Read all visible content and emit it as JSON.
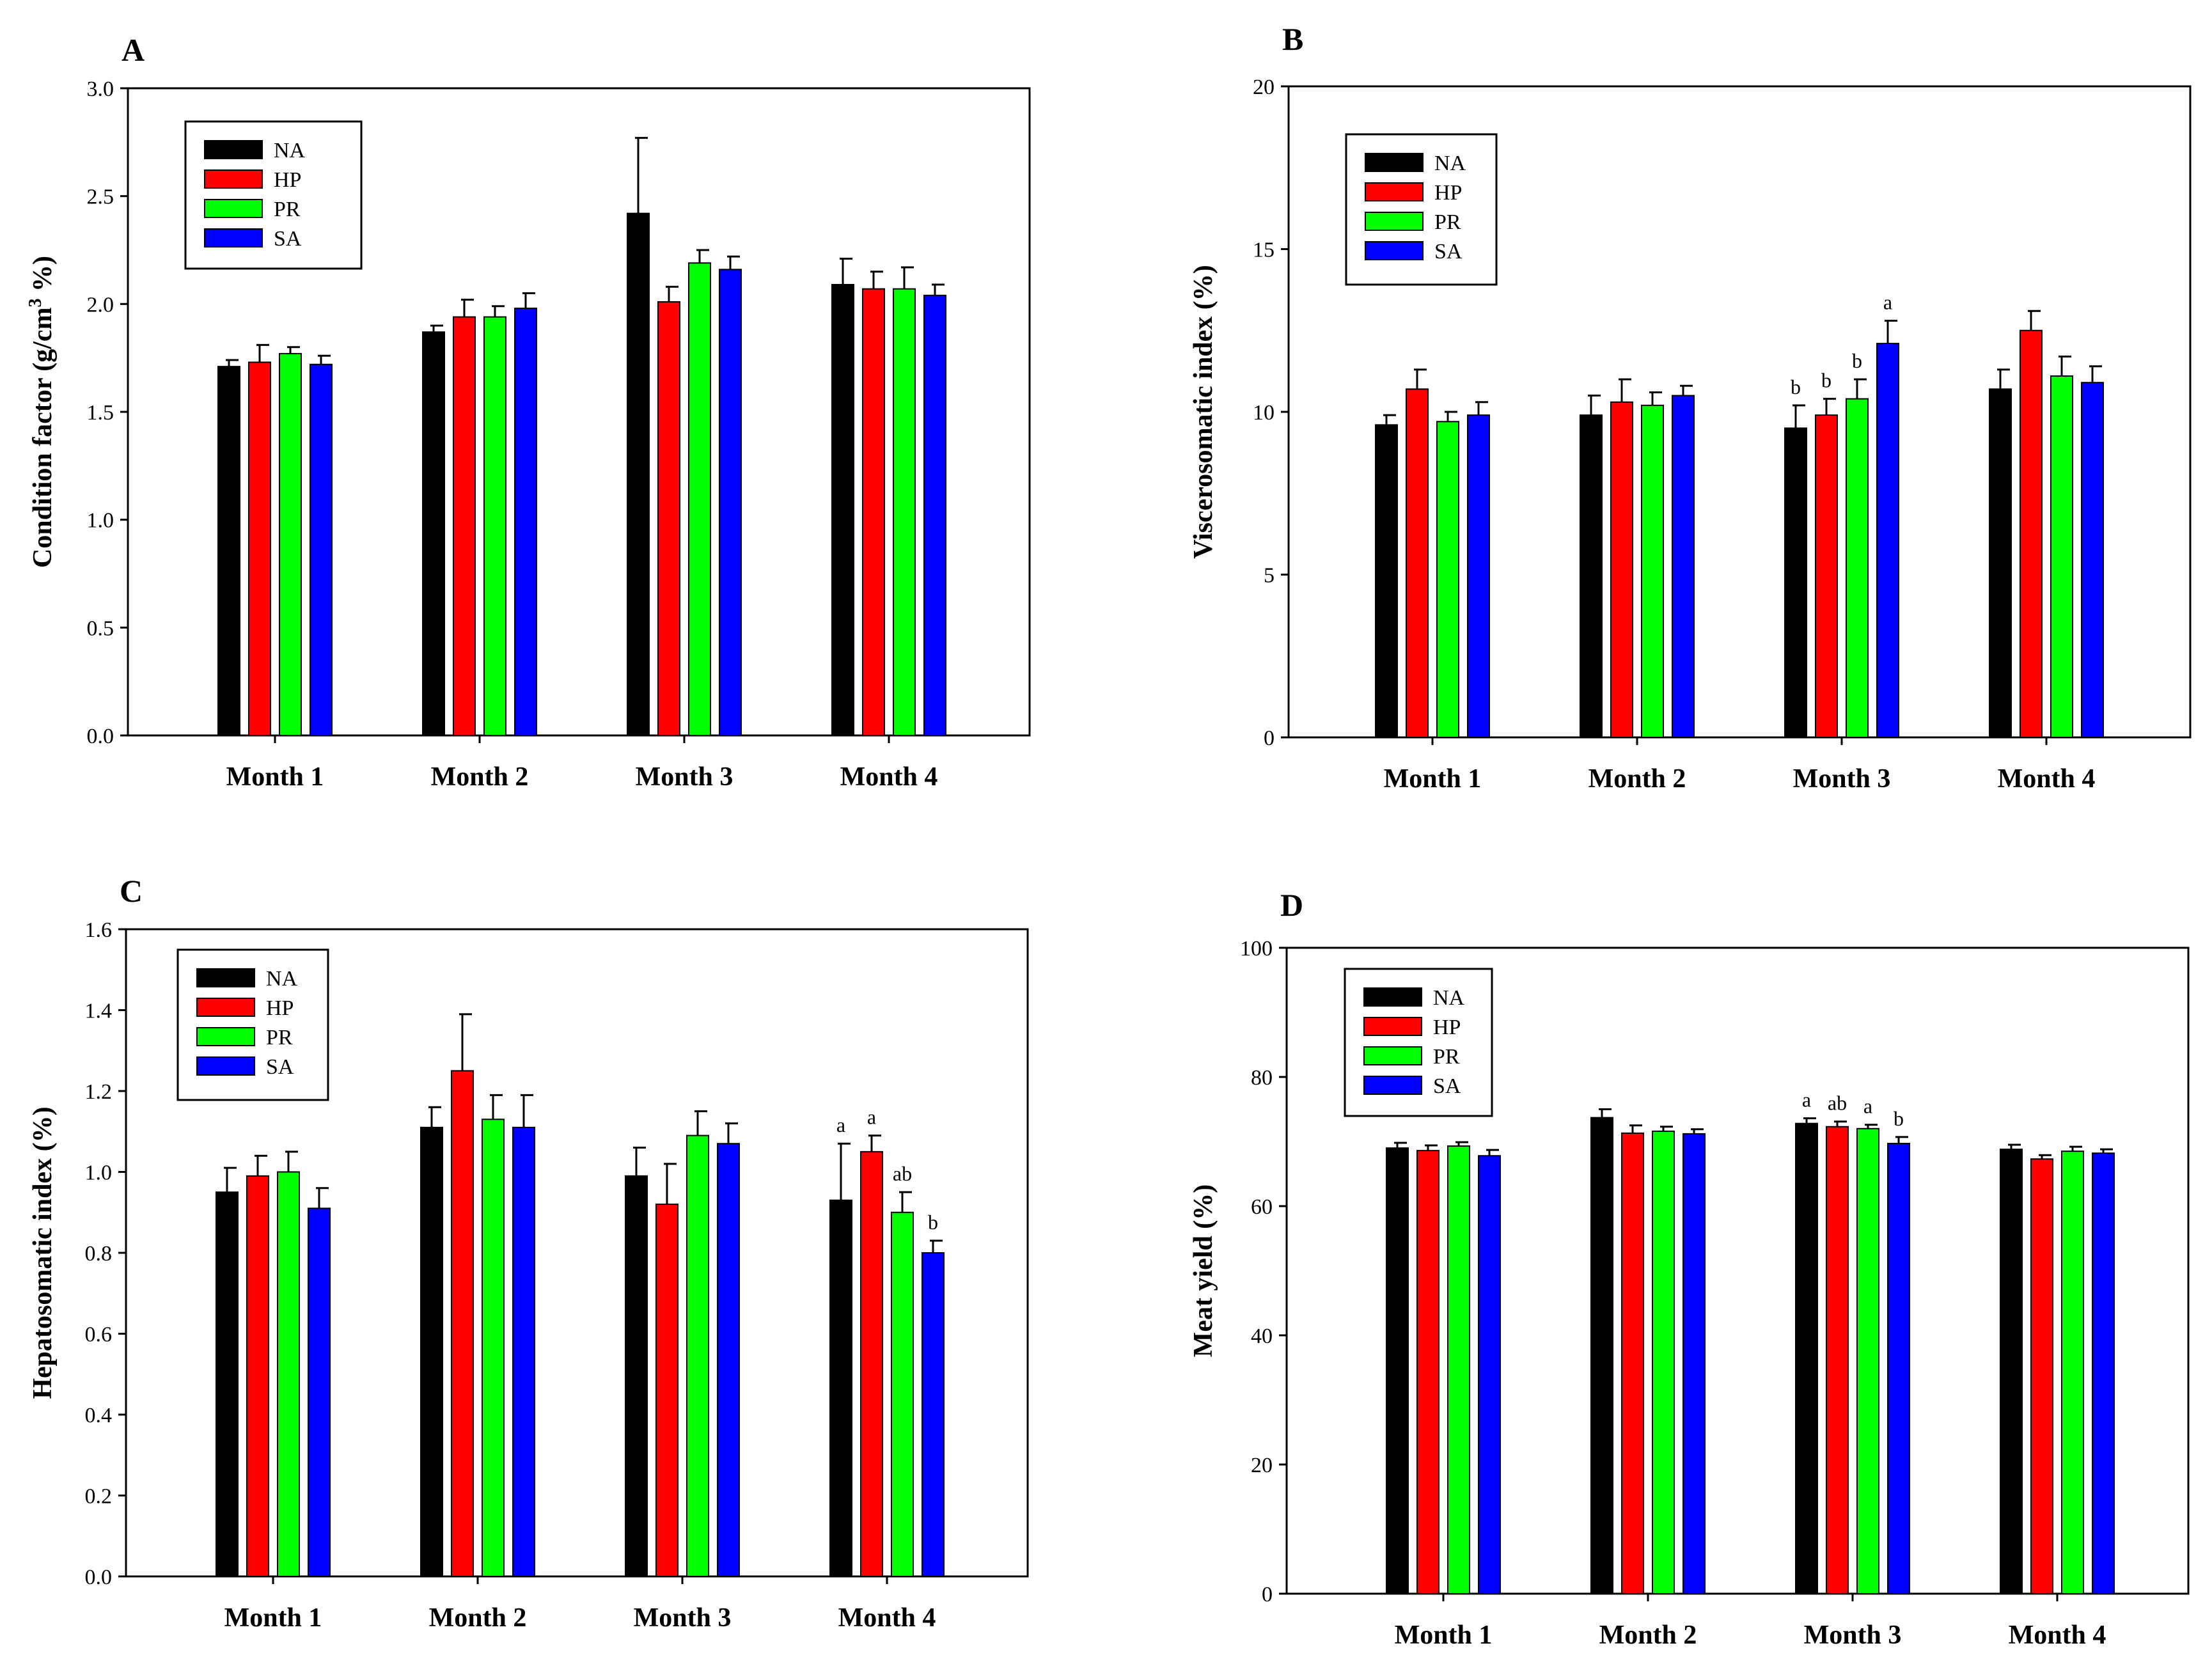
{
  "chart_data": [
    {
      "type": "bar",
      "panel": "A",
      "ylabel_main": "Condition factor (g/cm",
      "ylabel_sup": "3",
      "ylabel_tail": " %)",
      "categories": [
        "Month 1",
        "Month 2",
        "Month 3",
        "Month 4"
      ],
      "ylim": [
        0,
        3.0
      ],
      "yticks": [
        "0.0",
        "0.5",
        "1.0",
        "1.5",
        "2.0",
        "2.5",
        "3.0"
      ],
      "legend": {
        "position": "top-left"
      },
      "series": [
        {
          "name": "NA",
          "color": "#000000",
          "values": [
            1.71,
            1.87,
            2.42,
            2.09
          ],
          "errors": [
            0.03,
            0.03,
            0.35,
            0.12
          ],
          "labels": [
            "",
            "",
            "",
            ""
          ]
        },
        {
          "name": "HP",
          "color": "#ff0000",
          "values": [
            1.73,
            1.94,
            2.01,
            2.07
          ],
          "errors": [
            0.08,
            0.08,
            0.07,
            0.08
          ],
          "labels": [
            "",
            "",
            "",
            ""
          ]
        },
        {
          "name": "PR",
          "color": "#00ff00",
          "values": [
            1.77,
            1.94,
            2.19,
            2.07
          ],
          "errors": [
            0.03,
            0.05,
            0.06,
            0.1
          ],
          "labels": [
            "",
            "",
            "",
            ""
          ]
        },
        {
          "name": "SA",
          "color": "#0000ff",
          "values": [
            1.72,
            1.98,
            2.16,
            2.04
          ],
          "errors": [
            0.04,
            0.07,
            0.06,
            0.05
          ],
          "labels": [
            "",
            "",
            "",
            ""
          ]
        }
      ]
    },
    {
      "type": "bar",
      "panel": "B",
      "ylabel_main": "Viscerosomatic index (%)",
      "ylabel_sup": "",
      "ylabel_tail": "",
      "categories": [
        "Month 1",
        "Month 2",
        "Month 3",
        "Month 4"
      ],
      "ylim": [
        0,
        20
      ],
      "yticks": [
        "0",
        "5",
        "10",
        "15",
        "20"
      ],
      "legend": {
        "position": "top-left"
      },
      "series": [
        {
          "name": "NA",
          "color": "#000000",
          "values": [
            9.6,
            9.9,
            9.5,
            10.7
          ],
          "errors": [
            0.3,
            0.6,
            0.7,
            0.6
          ],
          "labels": [
            "",
            "",
            "b",
            ""
          ]
        },
        {
          "name": "HP",
          "color": "#ff0000",
          "values": [
            10.7,
            10.3,
            9.9,
            12.5
          ],
          "errors": [
            0.6,
            0.7,
            0.5,
            0.6
          ],
          "labels": [
            "",
            "",
            "b",
            ""
          ]
        },
        {
          "name": "PR",
          "color": "#00ff00",
          "values": [
            9.7,
            10.2,
            10.4,
            11.1
          ],
          "errors": [
            0.3,
            0.4,
            0.6,
            0.6
          ],
          "labels": [
            "",
            "",
            "b",
            ""
          ]
        },
        {
          "name": "SA",
          "color": "#0000ff",
          "values": [
            9.9,
            10.5,
            12.1,
            10.9
          ],
          "errors": [
            0.4,
            0.3,
            0.7,
            0.5
          ],
          "labels": [
            "",
            "",
            "a",
            ""
          ]
        }
      ]
    },
    {
      "type": "bar",
      "panel": "C",
      "ylabel_main": "Hepatosomatic index (%)",
      "ylabel_sup": "",
      "ylabel_tail": "",
      "categories": [
        "Month 1",
        "Month 2",
        "Month 3",
        "Month 4"
      ],
      "ylim": [
        0,
        1.6
      ],
      "yticks": [
        "0.0",
        "0.2",
        "0.4",
        "0.6",
        "0.8",
        "1.0",
        "1.2",
        "1.4",
        "1.6"
      ],
      "legend": {
        "position": "top-left"
      },
      "series": [
        {
          "name": "NA",
          "color": "#000000",
          "values": [
            0.95,
            1.11,
            0.99,
            0.93
          ],
          "errors": [
            0.06,
            0.05,
            0.07,
            0.14
          ],
          "labels": [
            "",
            "",
            "",
            "a"
          ]
        },
        {
          "name": "HP",
          "color": "#ff0000",
          "values": [
            0.99,
            1.25,
            0.92,
            1.05
          ],
          "errors": [
            0.05,
            0.14,
            0.1,
            0.04
          ],
          "labels": [
            "",
            "",
            "",
            "a"
          ]
        },
        {
          "name": "PR",
          "color": "#00ff00",
          "values": [
            1.0,
            1.13,
            1.09,
            0.9
          ],
          "errors": [
            0.05,
            0.06,
            0.06,
            0.05
          ],
          "labels": [
            "",
            "",
            "",
            "ab"
          ]
        },
        {
          "name": "SA",
          "color": "#0000ff",
          "values": [
            0.91,
            1.11,
            1.07,
            0.8
          ],
          "errors": [
            0.05,
            0.08,
            0.05,
            0.03
          ],
          "labels": [
            "",
            "",
            "",
            "b"
          ]
        }
      ]
    },
    {
      "type": "bar",
      "panel": "D",
      "ylabel_main": "Meat yield (%)",
      "ylabel_sup": "",
      "ylabel_tail": "",
      "categories": [
        "Month 1",
        "Month 2",
        "Month 3",
        "Month 4"
      ],
      "ylim": [
        0,
        100
      ],
      "yticks": [
        "0",
        "20",
        "40",
        "60",
        "80",
        "100"
      ],
      "legend": {
        "position": "top-left"
      },
      "series": [
        {
          "name": "NA",
          "color": "#000000",
          "values": [
            69.0,
            73.7,
            72.8,
            68.8
          ],
          "errors": [
            0.8,
            1.3,
            0.8,
            0.7
          ],
          "labels": [
            "",
            "",
            "a",
            ""
          ]
        },
        {
          "name": "HP",
          "color": "#ff0000",
          "values": [
            68.6,
            71.3,
            72.3,
            67.3
          ],
          "errors": [
            0.8,
            1.2,
            0.8,
            0.6
          ],
          "labels": [
            "",
            "",
            "ab",
            ""
          ]
        },
        {
          "name": "PR",
          "color": "#00ff00",
          "values": [
            69.3,
            71.6,
            72.0,
            68.5
          ],
          "errors": [
            0.6,
            0.7,
            0.6,
            0.7
          ],
          "labels": [
            "",
            "",
            "a",
            ""
          ]
        },
        {
          "name": "SA",
          "color": "#0000ff",
          "values": [
            67.8,
            71.2,
            69.7,
            68.2
          ],
          "errors": [
            0.9,
            0.7,
            1.0,
            0.6
          ],
          "labels": [
            "",
            "",
            "b",
            ""
          ]
        }
      ]
    }
  ]
}
